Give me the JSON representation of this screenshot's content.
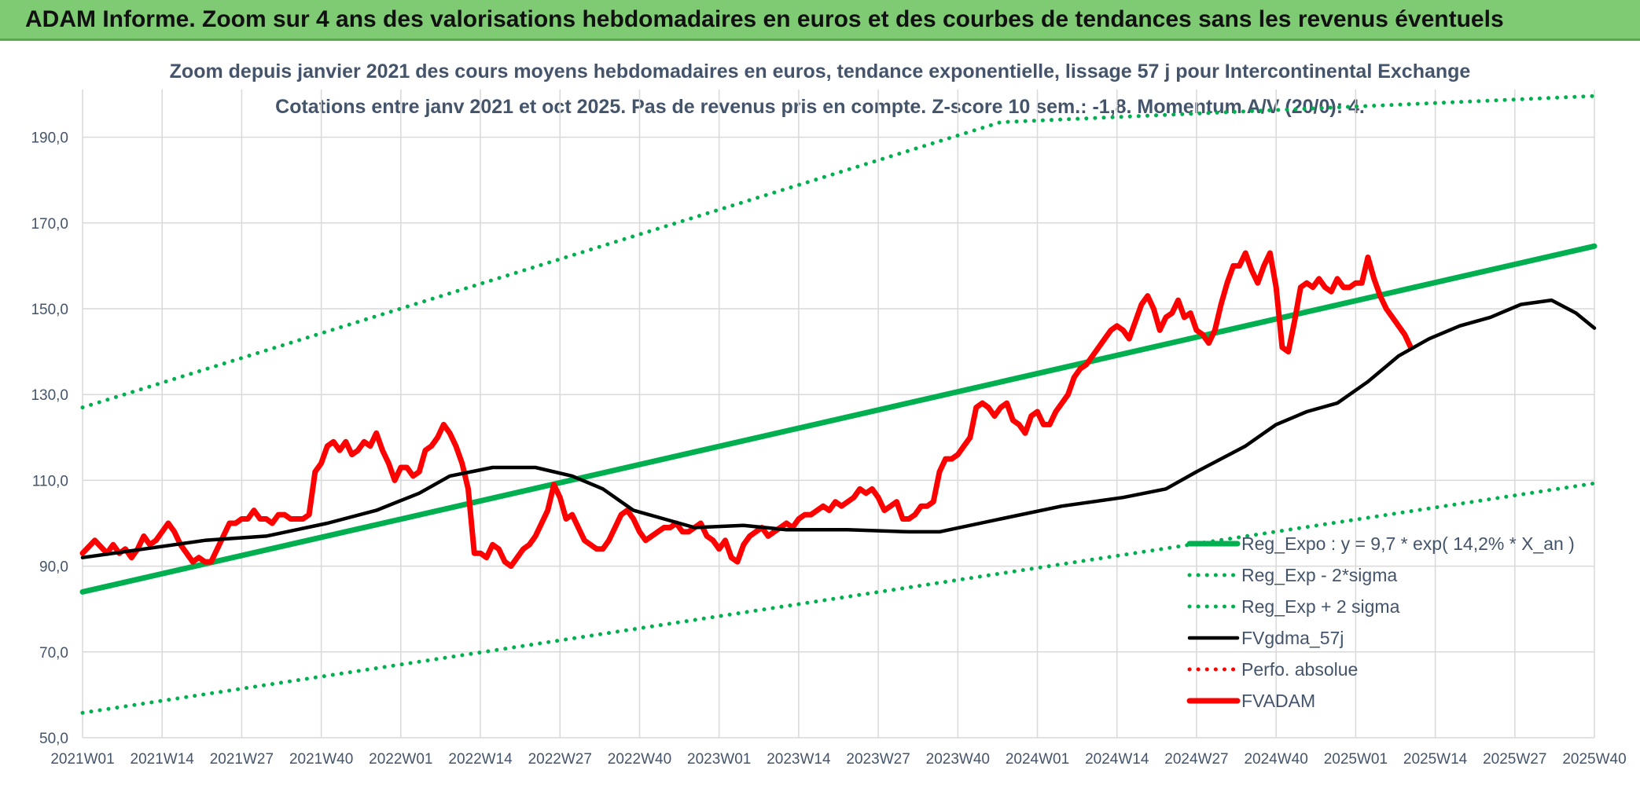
{
  "banner": {
    "title": "ADAM Informe. Zoom sur 4 ans des valorisations hebdomadaires en euros et des courbes de tendances sans les revenus éventuels"
  },
  "chart_data": {
    "type": "line",
    "title": "Zoom depuis janvier 2021 des cours moyens hebdomadaires en euros, tendance exponentielle, lissage 57 j pour Intercontinental Exchange",
    "subtitle": "Cotations entre janv 2021 et oct 2025. Pas de revenus pris en compte. Z-score 10 sem.: -1,8. Momentum A/V (20/0): 4.",
    "ylim": [
      50,
      200
    ],
    "y_ticks": [
      "50,0",
      "70,0",
      "90,0",
      "110,0",
      "130,0",
      "150,0",
      "170,0",
      "190,0"
    ],
    "x_ticks": [
      "2021W01",
      "2021W14",
      "2021W27",
      "2021W40",
      "2022W01",
      "2022W14",
      "2022W27",
      "2022W40",
      "2023W01",
      "2023W14",
      "2023W27",
      "2023W40",
      "2024W01",
      "2024W14",
      "2024W27",
      "2024W40",
      "2025W01",
      "2025W14",
      "2025W27",
      "2025W40"
    ],
    "grid": true,
    "legend_position": "bottom-right",
    "series": [
      {
        "name": "Reg_Expo : y = 9,7 * exp( 14,2% *  X_an )",
        "color": "#00b050",
        "style": "solid-thick",
        "points": [
          [
            0,
            84
          ],
          [
            247,
            164.6
          ]
        ]
      },
      {
        "name": "Reg_Exp - 2*sigma",
        "color": "#00b050",
        "style": "dotted",
        "points": [
          [
            0,
            55.8
          ],
          [
            247,
            109.3
          ]
        ]
      },
      {
        "name": "Reg_Exp + 2 sigma",
        "color": "#00b050",
        "style": "dotted",
        "points": [
          [
            0,
            127
          ],
          [
            150,
            193.5
          ],
          [
            247,
            199.6
          ]
        ]
      },
      {
        "name": "FVgdma_57j",
        "color": "#000000",
        "style": "solid",
        "points": [
          [
            0,
            92
          ],
          [
            10,
            94
          ],
          [
            20,
            96
          ],
          [
            30,
            97
          ],
          [
            40,
            100
          ],
          [
            48,
            103
          ],
          [
            55,
            107
          ],
          [
            60,
            111
          ],
          [
            67,
            113
          ],
          [
            74,
            113
          ],
          [
            80,
            111
          ],
          [
            85,
            108
          ],
          [
            90,
            103
          ],
          [
            95,
            101
          ],
          [
            100,
            99
          ],
          [
            108,
            99.5
          ],
          [
            115,
            98.5
          ],
          [
            125,
            98.5
          ],
          [
            135,
            98
          ],
          [
            140,
            98
          ],
          [
            150,
            101
          ],
          [
            160,
            104
          ],
          [
            170,
            106
          ],
          [
            177,
            108
          ],
          [
            182,
            112
          ],
          [
            190,
            118
          ],
          [
            195,
            123
          ],
          [
            200,
            126
          ],
          [
            205,
            128
          ],
          [
            210,
            133
          ],
          [
            215,
            139
          ],
          [
            220,
            143
          ],
          [
            225,
            146
          ],
          [
            230,
            148
          ],
          [
            235,
            151
          ],
          [
            240,
            152
          ],
          [
            244,
            149
          ],
          [
            247,
            145.5
          ]
        ]
      },
      {
        "name": "Perfo. absolue",
        "color": "#ff0000",
        "style": "dotted",
        "points": []
      },
      {
        "name": "FVADAM",
        "color": "#ff0000",
        "style": "solid-thick",
        "points": [
          [
            0,
            93
          ],
          [
            2,
            96
          ],
          [
            4,
            93
          ],
          [
            5,
            95
          ],
          [
            6,
            93
          ],
          [
            7,
            94
          ],
          [
            8,
            92
          ],
          [
            9,
            94
          ],
          [
            10,
            97
          ],
          [
            11,
            95
          ],
          [
            12,
            96
          ],
          [
            13,
            98
          ],
          [
            14,
            100
          ],
          [
            15,
            98
          ],
          [
            16,
            95
          ],
          [
            17,
            93
          ],
          [
            18,
            91
          ],
          [
            19,
            92
          ],
          [
            20,
            91
          ],
          [
            21,
            91
          ],
          [
            22,
            94
          ],
          [
            23,
            97
          ],
          [
            24,
            100
          ],
          [
            25,
            100
          ],
          [
            26,
            101
          ],
          [
            27,
            101
          ],
          [
            28,
            103
          ],
          [
            29,
            101
          ],
          [
            30,
            101
          ],
          [
            31,
            100
          ],
          [
            32,
            102
          ],
          [
            33,
            102
          ],
          [
            34,
            101
          ],
          [
            35,
            101
          ],
          [
            36,
            101
          ],
          [
            37,
            102
          ],
          [
            38,
            112
          ],
          [
            39,
            114
          ],
          [
            40,
            118
          ],
          [
            41,
            119
          ],
          [
            42,
            117
          ],
          [
            43,
            119
          ],
          [
            44,
            116
          ],
          [
            45,
            117
          ],
          [
            46,
            119
          ],
          [
            47,
            118
          ],
          [
            48,
            121
          ],
          [
            49,
            117
          ],
          [
            50,
            114
          ],
          [
            51,
            110
          ],
          [
            52,
            113
          ],
          [
            53,
            113
          ],
          [
            54,
            111
          ],
          [
            55,
            112
          ],
          [
            56,
            117
          ],
          [
            57,
            118
          ],
          [
            58,
            120
          ],
          [
            59,
            123
          ],
          [
            60,
            121
          ],
          [
            61,
            118
          ],
          [
            62,
            114
          ],
          [
            63,
            108
          ],
          [
            64,
            93
          ],
          [
            65,
            93
          ],
          [
            66,
            92
          ],
          [
            67,
            95
          ],
          [
            68,
            94
          ],
          [
            69,
            91
          ],
          [
            70,
            90
          ],
          [
            71,
            92
          ],
          [
            72,
            94
          ],
          [
            73,
            95
          ],
          [
            74,
            97
          ],
          [
            75,
            100
          ],
          [
            76,
            103
          ],
          [
            77,
            109
          ],
          [
            78,
            106
          ],
          [
            79,
            101
          ],
          [
            80,
            102
          ],
          [
            81,
            99
          ],
          [
            82,
            96
          ],
          [
            83,
            95
          ],
          [
            84,
            94
          ],
          [
            85,
            94
          ],
          [
            86,
            96
          ],
          [
            87,
            99
          ],
          [
            88,
            102
          ],
          [
            89,
            103
          ],
          [
            90,
            101
          ],
          [
            91,
            98
          ],
          [
            92,
            96
          ],
          [
            93,
            97
          ],
          [
            94,
            98
          ],
          [
            95,
            99
          ],
          [
            96,
            99
          ],
          [
            97,
            100
          ],
          [
            98,
            98
          ],
          [
            99,
            98
          ],
          [
            100,
            99
          ],
          [
            101,
            100
          ],
          [
            102,
            97
          ],
          [
            103,
            96
          ],
          [
            104,
            94
          ],
          [
            105,
            96
          ],
          [
            106,
            92
          ],
          [
            107,
            91
          ],
          [
            108,
            95
          ],
          [
            109,
            97
          ],
          [
            110,
            98
          ],
          [
            111,
            99
          ],
          [
            112,
            97
          ],
          [
            113,
            98
          ],
          [
            114,
            99
          ],
          [
            115,
            100
          ],
          [
            116,
            99
          ],
          [
            117,
            101
          ],
          [
            118,
            102
          ],
          [
            119,
            102
          ],
          [
            120,
            103
          ],
          [
            121,
            104
          ],
          [
            122,
            103
          ],
          [
            123,
            105
          ],
          [
            124,
            104
          ],
          [
            125,
            105
          ],
          [
            126,
            106
          ],
          [
            127,
            108
          ],
          [
            128,
            107
          ],
          [
            129,
            108
          ],
          [
            130,
            106
          ],
          [
            131,
            103
          ],
          [
            132,
            104
          ],
          [
            133,
            105
          ],
          [
            134,
            101
          ],
          [
            135,
            101
          ],
          [
            136,
            102
          ],
          [
            137,
            104
          ],
          [
            138,
            104
          ],
          [
            139,
            105
          ],
          [
            140,
            112
          ],
          [
            141,
            115
          ],
          [
            142,
            115
          ],
          [
            143,
            116
          ],
          [
            144,
            118
          ],
          [
            145,
            120
          ],
          [
            146,
            127
          ],
          [
            147,
            128
          ],
          [
            148,
            127
          ],
          [
            149,
            125
          ],
          [
            150,
            127
          ],
          [
            151,
            128
          ],
          [
            152,
            124
          ],
          [
            153,
            123
          ],
          [
            154,
            121
          ],
          [
            155,
            125
          ],
          [
            156,
            126
          ],
          [
            157,
            123
          ],
          [
            158,
            123
          ],
          [
            159,
            126
          ],
          [
            160,
            128
          ],
          [
            161,
            130
          ],
          [
            162,
            134
          ],
          [
            163,
            136
          ],
          [
            164,
            137
          ],
          [
            165,
            139
          ],
          [
            166,
            141
          ],
          [
            167,
            143
          ],
          [
            168,
            145
          ],
          [
            169,
            146
          ],
          [
            170,
            145
          ],
          [
            171,
            143
          ],
          [
            172,
            147
          ],
          [
            173,
            151
          ],
          [
            174,
            153
          ],
          [
            175,
            150
          ],
          [
            176,
            145
          ],
          [
            177,
            148
          ],
          [
            178,
            149
          ],
          [
            179,
            152
          ],
          [
            180,
            148
          ],
          [
            181,
            149
          ],
          [
            182,
            145
          ],
          [
            183,
            144
          ],
          [
            184,
            142
          ],
          [
            185,
            145
          ],
          [
            186,
            151
          ],
          [
            187,
            156
          ],
          [
            188,
            160
          ],
          [
            189,
            160
          ],
          [
            190,
            163
          ],
          [
            191,
            159
          ],
          [
            192,
            156
          ],
          [
            193,
            160
          ],
          [
            194,
            163
          ],
          [
            195,
            155
          ],
          [
            196,
            141
          ],
          [
            197,
            140
          ],
          [
            198,
            147
          ],
          [
            199,
            155
          ],
          [
            200,
            156
          ],
          [
            201,
            155
          ],
          [
            202,
            157
          ],
          [
            203,
            155
          ],
          [
            204,
            154
          ],
          [
            205,
            157
          ],
          [
            206,
            155
          ],
          [
            207,
            155
          ],
          [
            208,
            156
          ],
          [
            209,
            156
          ],
          [
            210,
            162
          ],
          [
            211,
            157
          ],
          [
            212,
            153
          ],
          [
            213,
            150
          ],
          [
            214,
            148
          ],
          [
            215,
            146
          ],
          [
            216,
            144
          ],
          [
            217,
            141
          ]
        ]
      }
    ]
  }
}
